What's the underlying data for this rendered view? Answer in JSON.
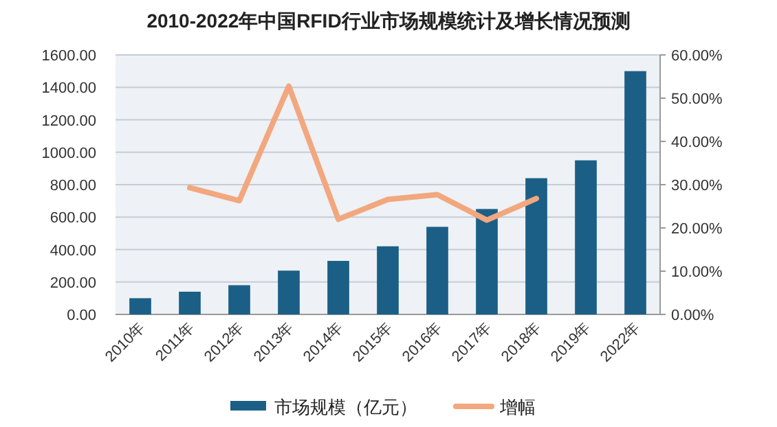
{
  "chart_data": {
    "type": "bar",
    "title": "2010-2022年中国RFID行业市场规模统计及增长情况预测",
    "categories": [
      "2010年",
      "2011年",
      "2012年",
      "2013年",
      "2014年",
      "2015年",
      "2016年",
      "2017年",
      "2018年",
      "2019年",
      "2022年"
    ],
    "series": [
      {
        "name": "市场规模（亿元）",
        "color": "#1b5f86",
        "values": [
          100,
          140,
          180,
          270,
          330,
          420,
          540,
          650,
          840,
          950,
          1500
        ]
      },
      {
        "name": "增幅",
        "type": "line",
        "axis": "y2",
        "color": "#f2a77e",
        "values": [
          null,
          29.3,
          26.3,
          52.8,
          22.0,
          26.6,
          27.7,
          21.8,
          26.8,
          null,
          null
        ]
      }
    ],
    "ylim": [
      0,
      1600
    ],
    "yticks": [
      {
        "value": 0,
        "label": "0.00"
      },
      {
        "value": 200,
        "label": "200.00"
      },
      {
        "value": 400,
        "label": "400.00"
      },
      {
        "value": 600,
        "label": "600.00"
      },
      {
        "value": 800,
        "label": "800.00"
      },
      {
        "value": 1000,
        "label": "1000.00"
      },
      {
        "value": 1200,
        "label": "1200.00"
      },
      {
        "value": 1400,
        "label": "1400.00"
      },
      {
        "value": 1600,
        "label": "1600.00"
      }
    ],
    "y2lim": [
      0,
      60
    ],
    "y2ticks": [
      {
        "value": 0,
        "label": "0.00%"
      },
      {
        "value": 10,
        "label": "10.00%"
      },
      {
        "value": 20,
        "label": "20.00%"
      },
      {
        "value": 30,
        "label": "30.00%"
      },
      {
        "value": 40,
        "label": "40.00%"
      },
      {
        "value": 50,
        "label": "50.00%"
      },
      {
        "value": 60,
        "label": "60.00%"
      }
    ],
    "grid": "y",
    "legend": "bottom",
    "marker": "none",
    "line_style": "solid"
  }
}
